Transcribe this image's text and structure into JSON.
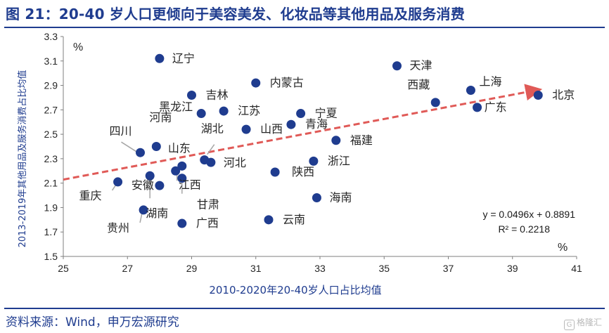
{
  "title": "图 21：20-40 岁人口更倾向于美容美发、化妆品等其他用品及服务消费",
  "source": "资料来源：Wind，申万宏源研究",
  "watermark": "格隆汇",
  "watermark_icon": "g-logo-icon",
  "colors": {
    "title": "#1f3c8f",
    "point": "#1f3c8f",
    "trend": "#e05a57",
    "axis": "#7f7f7f",
    "leader": "#a6a6a6"
  },
  "chart_data": {
    "type": "scatter",
    "xlabel": "2010-2020年20-40岁人口占比均值",
    "ylabel": "2013-2019年其他用品及服务消费占比均值",
    "x_unit": "%",
    "y_unit": "%",
    "xlim": [
      25,
      41
    ],
    "ylim": [
      1.5,
      3.3
    ],
    "xticks": [
      "25",
      "27",
      "29",
      "31",
      "33",
      "35",
      "37",
      "39",
      "41"
    ],
    "yticks": [
      "1.5",
      "1.7",
      "1.9",
      "2.1",
      "2.3",
      "2.5",
      "2.7",
      "2.9",
      "3.1",
      "3.3"
    ],
    "grid": false,
    "equation": "y = 0.0496x + 0.8891",
    "r2": "R² = 0.2218",
    "trendline": {
      "slope": 0.0496,
      "intercept": 0.8891,
      "x_range": [
        25,
        39.8
      ]
    },
    "points": [
      {
        "name": "北京",
        "x": 39.8,
        "y": 2.82
      },
      {
        "name": "天津",
        "x": 35.4,
        "y": 3.06
      },
      {
        "name": "上海",
        "x": 37.7,
        "y": 2.86
      },
      {
        "name": "广东",
        "x": 37.9,
        "y": 2.72
      },
      {
        "name": "西藏",
        "x": 36.6,
        "y": 2.76
      },
      {
        "name": "辽宁",
        "x": 28.0,
        "y": 3.12
      },
      {
        "name": "内蒙古",
        "x": 31.0,
        "y": 2.92
      },
      {
        "name": "吉林",
        "x": 29.0,
        "y": 2.82
      },
      {
        "name": "黑龙江",
        "x": 29.3,
        "y": 2.67
      },
      {
        "name": "江苏",
        "x": 30.0,
        "y": 2.69
      },
      {
        "name": "宁夏",
        "x": 32.4,
        "y": 2.67
      },
      {
        "name": "青海",
        "x": 32.1,
        "y": 2.58
      },
      {
        "name": "山西",
        "x": 30.7,
        "y": 2.54
      },
      {
        "name": "福建",
        "x": 33.5,
        "y": 2.45
      },
      {
        "name": "河南",
        "x": 27.9,
        "y": 2.4
      },
      {
        "name": "四川",
        "x": 27.4,
        "y": 2.35
      },
      {
        "name": "湖北",
        "x": 29.4,
        "y": 2.29
      },
      {
        "name": "河北",
        "x": 29.6,
        "y": 2.27
      },
      {
        "name": "浙江",
        "x": 32.8,
        "y": 2.28
      },
      {
        "name": "山东",
        "x": 28.7,
        "y": 2.24
      },
      {
        "name": "江西",
        "x": 28.5,
        "y": 2.2
      },
      {
        "name": "陕西",
        "x": 31.6,
        "y": 2.19
      },
      {
        "name": "湖南",
        "x": 27.7,
        "y": 2.16
      },
      {
        "name": "甘肃",
        "x": 28.7,
        "y": 2.14
      },
      {
        "name": "重庆",
        "x": 26.7,
        "y": 2.11
      },
      {
        "name": "安徽",
        "x": 28.0,
        "y": 2.08
      },
      {
        "name": "海南",
        "x": 32.9,
        "y": 1.98
      },
      {
        "name": "贵州",
        "x": 27.5,
        "y": 1.88
      },
      {
        "name": "云南",
        "x": 31.4,
        "y": 1.8
      },
      {
        "name": "广西",
        "x": 28.7,
        "y": 1.77
      }
    ]
  }
}
